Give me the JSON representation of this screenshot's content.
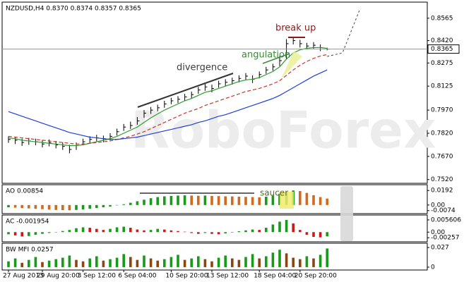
{
  "chart_data": [
    {
      "type": "ohlc",
      "title": "NZDUSD,H4  0.8370 0.8374 0.8357 0.8365",
      "watermark": "RoboForex",
      "categories": [
        "27 Aug 2013",
        null,
        null,
        null,
        null,
        "29 Aug 20:00",
        null,
        null,
        null,
        null,
        null,
        "3 Sep 12:00",
        null,
        null,
        null,
        null,
        null,
        "6 Sep 04:00",
        null,
        null,
        null,
        null,
        null,
        null,
        "10 Sep 20:00",
        null,
        null,
        null,
        null,
        null,
        "13 Sep 12:00",
        null,
        null,
        null,
        null,
        null,
        null,
        "18 Sep 04:00",
        null,
        null,
        null,
        null,
        null,
        "20 Sep 20:00",
        null,
        null,
        null,
        null
      ],
      "high": [
        0.78,
        0.7795,
        0.7785,
        0.779,
        0.7785,
        0.7775,
        0.778,
        0.777,
        0.776,
        0.7745,
        0.776,
        0.7785,
        0.78,
        0.781,
        0.7805,
        0.782,
        0.785,
        0.788,
        0.7895,
        0.7925,
        0.797,
        0.799,
        0.8005,
        0.803,
        0.805,
        0.806,
        0.8075,
        0.809,
        0.812,
        0.814,
        0.8135,
        0.816,
        0.817,
        0.818,
        0.8195,
        0.821,
        0.8195,
        0.822,
        0.825,
        0.827,
        0.832,
        0.843,
        0.844,
        0.8425,
        0.8405,
        0.841,
        0.8395,
        0.8374
      ],
      "low": [
        0.7758,
        0.775,
        0.7738,
        0.7745,
        0.7742,
        0.7728,
        0.7735,
        0.7722,
        0.7712,
        0.769,
        0.7712,
        0.7742,
        0.7758,
        0.7768,
        0.7762,
        0.7775,
        0.7805,
        0.7835,
        0.7848,
        0.7875,
        0.792,
        0.7945,
        0.7962,
        0.7985,
        0.8008,
        0.8015,
        0.803,
        0.8045,
        0.8075,
        0.8095,
        0.8085,
        0.8115,
        0.8125,
        0.8135,
        0.815,
        0.8165,
        0.8145,
        0.8175,
        0.8205,
        0.8225,
        0.8255,
        0.83,
        0.8395,
        0.8375,
        0.8362,
        0.8368,
        0.8352,
        0.8357
      ],
      "close": [
        0.778,
        0.7775,
        0.776,
        0.777,
        0.7765,
        0.775,
        0.776,
        0.7745,
        0.7735,
        0.7715,
        0.774,
        0.7765,
        0.778,
        0.779,
        0.7785,
        0.78,
        0.783,
        0.786,
        0.787,
        0.79,
        0.795,
        0.797,
        0.7985,
        0.801,
        0.803,
        0.804,
        0.8055,
        0.807,
        0.81,
        0.812,
        0.811,
        0.814,
        0.815,
        0.816,
        0.8175,
        0.819,
        0.817,
        0.82,
        0.823,
        0.825,
        0.829,
        0.84,
        0.842,
        0.84,
        0.8385,
        0.839,
        0.8375,
        0.8365
      ],
      "color": "#000000",
      "lines": [
        {
          "color": "#2e9b2e",
          "dash": false,
          "values": [
            0.779,
            0.7785,
            0.7775,
            0.777,
            0.7765,
            0.776,
            0.7755,
            0.775,
            0.7745,
            0.774,
            0.774,
            0.7745,
            0.7755,
            0.7765,
            0.7775,
            0.7785,
            0.78,
            0.782,
            0.784,
            0.786,
            0.789,
            0.792,
            0.7945,
            0.797,
            0.799,
            0.801,
            0.803,
            0.8045,
            0.8065,
            0.8085,
            0.8095,
            0.811,
            0.8125,
            0.814,
            0.8155,
            0.8165,
            0.817,
            0.818,
            0.82,
            0.822,
            0.825,
            0.83,
            0.834,
            0.836,
            0.837,
            0.8375,
            0.8375,
            0.837
          ]
        },
        {
          "color": "#c0392b",
          "dash": true,
          "values": [
            0.78,
            0.7795,
            0.779,
            0.7785,
            0.778,
            0.7775,
            0.777,
            0.7765,
            0.776,
            0.7755,
            0.775,
            0.775,
            0.7755,
            0.776,
            0.7765,
            0.777,
            0.778,
            0.779,
            0.78,
            0.7815,
            0.783,
            0.785,
            0.787,
            0.789,
            0.791,
            0.793,
            0.795,
            0.7965,
            0.798,
            0.8,
            0.8015,
            0.803,
            0.8045,
            0.806,
            0.8075,
            0.809,
            0.81,
            0.811,
            0.8125,
            0.814,
            0.816,
            0.8195,
            0.823,
            0.826,
            0.8285,
            0.8305,
            0.832,
            0.833
          ]
        },
        {
          "color": "#1f3fd6",
          "dash": false,
          "values": [
            0.796,
            0.7945,
            0.793,
            0.7915,
            0.79,
            0.7885,
            0.787,
            0.7855,
            0.784,
            0.7825,
            0.7815,
            0.7805,
            0.7795,
            0.779,
            0.7785,
            0.778,
            0.778,
            0.7785,
            0.779,
            0.7795,
            0.7805,
            0.7815,
            0.7825,
            0.7835,
            0.7845,
            0.7855,
            0.7865,
            0.7875,
            0.789,
            0.79,
            0.7915,
            0.793,
            0.794,
            0.7955,
            0.797,
            0.7985,
            0.8,
            0.8015,
            0.803,
            0.8045,
            0.8065,
            0.809,
            0.8115,
            0.814,
            0.8165,
            0.819,
            0.821,
            0.823
          ]
        }
      ],
      "annotations": [
        "divergence",
        "angulation",
        "break up"
      ],
      "ylim": [
        0.7505,
        0.866
      ],
      "yticks": [
        0.8565,
        {
          "value": 0.842,
          "label": "0.8420"
        },
        0.8275,
        0.8125,
        {
          "value": 0.797,
          "label": "0.7970"
        },
        {
          "value": 0.782,
          "label": "0.7820"
        },
        {
          "value": 0.767,
          "label": "0.7670"
        },
        {
          "value": 0.752,
          "label": "0.7520"
        }
      ]
    },
    {
      "type": "bar",
      "title": "AO 0.00854",
      "annotations": [
        "saucer"
      ],
      "up_color": "#1a9a1a",
      "down_color": "#d2691e",
      "values": [
        -0.003,
        -0.0035,
        -0.004,
        -0.0045,
        -0.005,
        -0.0055,
        -0.006,
        -0.0065,
        -0.0068,
        -0.007,
        -0.0065,
        -0.0058,
        -0.005,
        -0.004,
        -0.003,
        -0.002,
        -0.0005,
        0.001,
        0.003,
        0.005,
        0.007,
        0.009,
        0.0105,
        0.0115,
        0.012,
        0.0125,
        0.0128,
        0.0125,
        0.0122,
        0.0125,
        0.012,
        0.0118,
        0.0115,
        0.0113,
        0.011,
        0.0108,
        0.0105,
        0.0102,
        0.011,
        0.0125,
        0.015,
        0.0175,
        0.0192,
        0.0185,
        0.016,
        0.013,
        0.0105,
        0.00854
      ],
      "ylim": [
        -0.0095,
        0.025
      ],
      "yticks": [
        0.0192,
        {
          "value": 0,
          "label": "0.00"
        },
        -0.0074
      ]
    },
    {
      "type": "bar",
      "title": "AC -0.001954",
      "annotations": [],
      "up_color": "#1a9a1a",
      "down_color": "#cc1a1a",
      "values": [
        -0.001,
        -0.0015,
        -0.002,
        -0.0018,
        -0.0012,
        -0.0008,
        -0.0004,
        0.0,
        0.0005,
        0.001,
        0.0018,
        0.0022,
        0.002,
        0.0015,
        0.001,
        0.0015,
        0.0022,
        0.0025,
        0.002,
        0.0012,
        0.0008,
        0.001,
        0.0015,
        0.0012,
        0.0008,
        0.0005,
        0.0002,
        -0.0004,
        -0.0008,
        -0.0004,
        -0.0008,
        -0.001,
        -0.0006,
        -0.0002,
        0.0004,
        0.0008,
        0.0012,
        0.001,
        0.002,
        0.0035,
        0.0048,
        0.0056,
        0.004,
        0.001,
        -0.0012,
        -0.0022,
        -0.0024,
        -0.001954
      ],
      "ylim": [
        -0.0038,
        0.0072
      ],
      "yticks": [
        0.005606,
        {
          "value": 0,
          "label": "0.00"
        },
        -0.00257
      ]
    },
    {
      "type": "bar",
      "title": "BW MFI 0.0257",
      "annotations": [],
      "up_color": "#1a9a1a",
      "down_color": "#8b4513",
      "values": [
        0.008,
        0.012,
        0.006,
        0.01,
        0.014,
        0.007,
        0.009,
        0.011,
        0.013,
        0.016,
        0.01,
        0.008,
        0.012,
        0.015,
        0.009,
        0.011,
        0.013,
        0.018,
        0.014,
        0.01,
        0.016,
        0.012,
        0.009,
        0.011,
        0.014,
        0.017,
        0.01,
        0.012,
        0.015,
        0.011,
        0.008,
        0.013,
        0.016,
        0.012,
        0.01,
        0.014,
        0.018,
        0.012,
        0.015,
        0.02,
        0.024,
        0.019,
        0.013,
        0.011,
        0.015,
        0.012,
        0.017,
        0.0257
      ],
      "ylim": [
        -0.002,
        0.031
      ],
      "yticks": [
        0.027,
        0
      ]
    }
  ]
}
